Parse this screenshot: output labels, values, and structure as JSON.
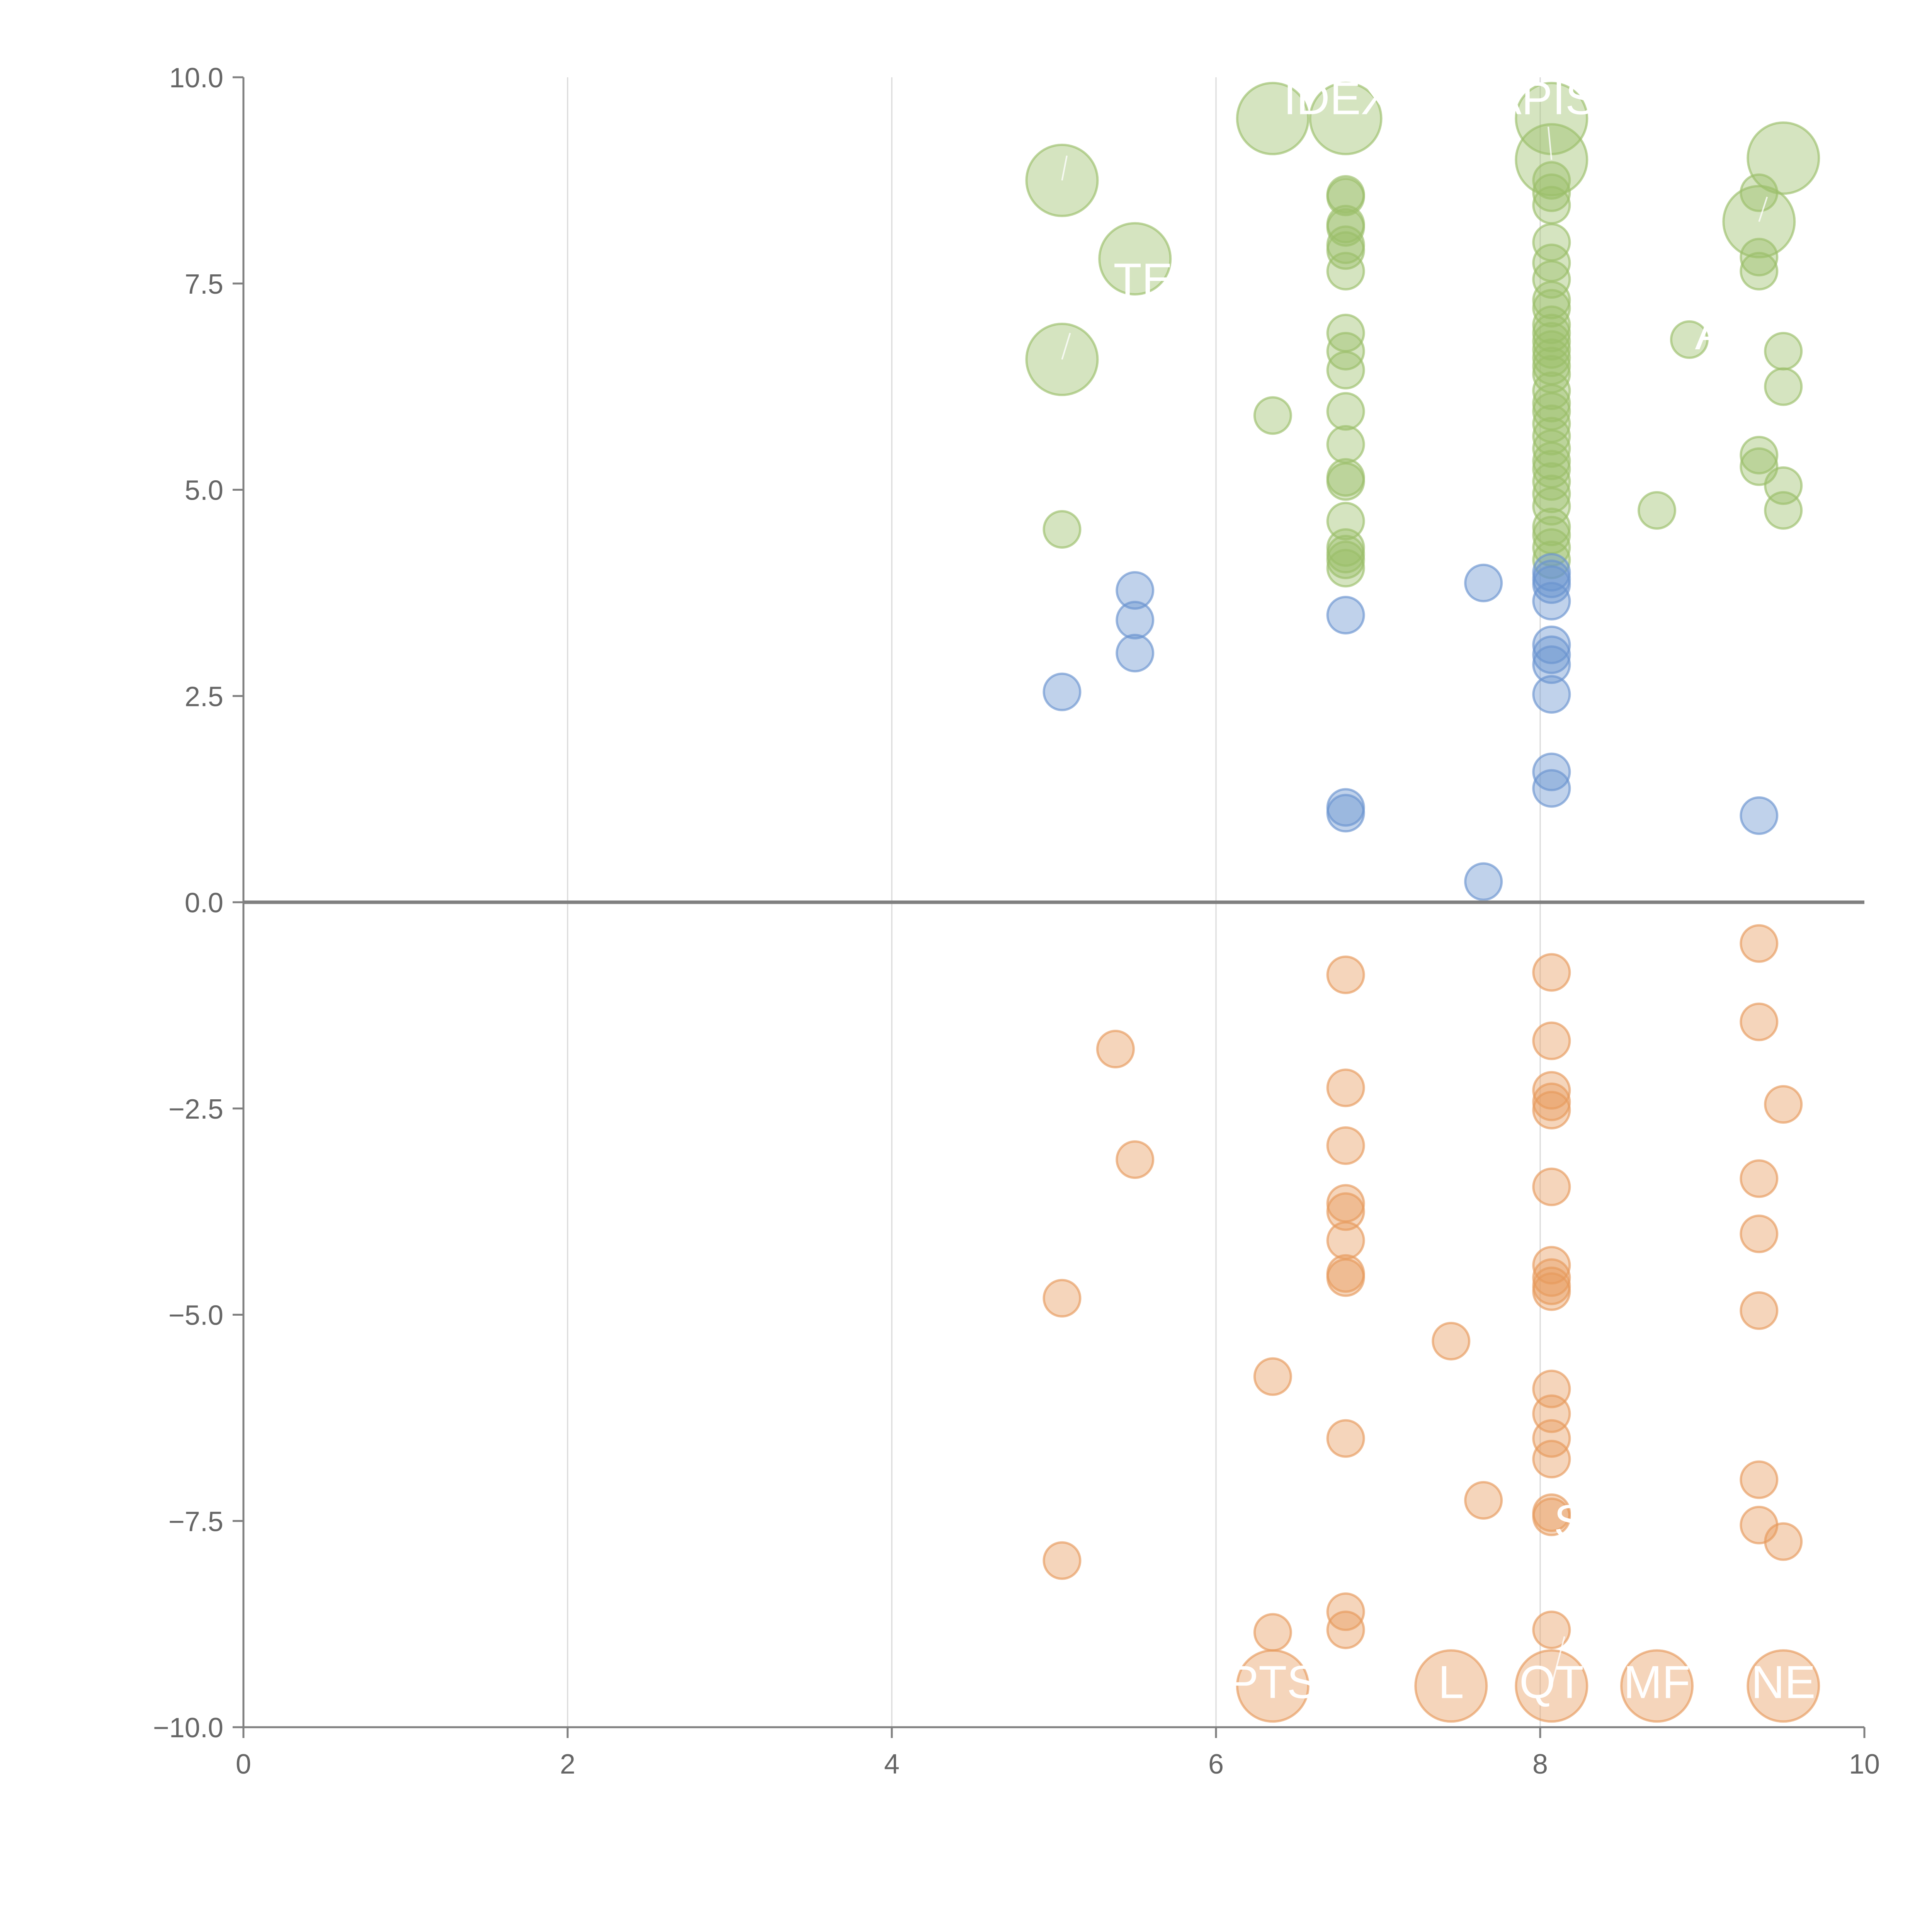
{
  "colors": {
    "green": "#9bbf6a",
    "blue": "#6a93cf",
    "orange": "#e79a5c",
    "axis": "#808080",
    "grid": "#d9d9d9",
    "tick_text": "#666666"
  },
  "chart_data": {
    "type": "scatter",
    "title": "",
    "xlabel": "",
    "ylabel": "",
    "xlim": [
      0,
      10
    ],
    "ylim": [
      -10,
      10
    ],
    "x_ticks": [
      "0",
      "2",
      "4",
      "6",
      "8",
      "10"
    ],
    "y_ticks": [
      "10.0",
      "7.5",
      "5.0",
      "2.5",
      "0.0",
      "−2.5",
      "−5.0",
      "−7.5",
      "−10.0"
    ],
    "x_grid": [
      2,
      4,
      6,
      8
    ],
    "series": [
      {
        "name": "green",
        "color": "#9bbf6a",
        "points": [
          [
            5.05,
            8.75,
            2
          ],
          [
            5.5,
            7.8,
            2
          ],
          [
            5.05,
            6.58,
            2
          ],
          [
            6.35,
            9.5,
            2
          ],
          [
            6.8,
            9.5,
            2
          ],
          [
            8.07,
            9.5,
            2
          ],
          [
            8.07,
            9.0,
            2
          ],
          [
            9.5,
            9.02,
            2
          ],
          [
            9.35,
            8.25,
            2
          ],
          [
            6.35,
            5.9,
            1
          ],
          [
            5.05,
            4.52,
            1
          ],
          [
            6.8,
            8.58,
            1
          ],
          [
            6.8,
            8.55,
            1
          ],
          [
            6.8,
            8.22,
            1
          ],
          [
            6.8,
            8.18,
            1
          ],
          [
            6.8,
            7.97,
            1
          ],
          [
            6.8,
            7.9,
            1
          ],
          [
            6.8,
            7.65,
            1
          ],
          [
            6.8,
            6.9,
            1
          ],
          [
            6.8,
            6.68,
            1
          ],
          [
            6.8,
            6.45,
            1
          ],
          [
            6.8,
            5.95,
            1
          ],
          [
            6.8,
            5.55,
            1
          ],
          [
            6.8,
            5.15,
            1
          ],
          [
            6.8,
            5.1,
            1
          ],
          [
            6.8,
            4.62,
            1
          ],
          [
            6.8,
            4.3,
            1
          ],
          [
            6.8,
            4.22,
            1
          ],
          [
            6.8,
            4.15,
            1
          ],
          [
            6.8,
            4.05,
            1
          ],
          [
            8.07,
            8.75,
            1
          ],
          [
            8.07,
            8.6,
            1
          ],
          [
            8.07,
            8.45,
            1
          ],
          [
            8.07,
            8.0,
            1
          ],
          [
            8.07,
            7.75,
            1
          ],
          [
            8.07,
            7.55,
            1
          ],
          [
            8.07,
            7.3,
            1
          ],
          [
            8.07,
            7.2,
            1
          ],
          [
            8.07,
            7.0,
            1
          ],
          [
            8.07,
            6.9,
            1
          ],
          [
            8.07,
            6.8,
            1
          ],
          [
            8.07,
            6.7,
            1
          ],
          [
            8.07,
            6.6,
            1
          ],
          [
            8.07,
            6.5,
            1
          ],
          [
            8.07,
            6.4,
            1
          ],
          [
            8.07,
            6.2,
            1
          ],
          [
            8.07,
            6.05,
            1
          ],
          [
            8.07,
            5.95,
            1
          ],
          [
            8.07,
            5.8,
            1
          ],
          [
            8.07,
            5.65,
            1
          ],
          [
            8.07,
            5.5,
            1
          ],
          [
            8.07,
            5.35,
            1
          ],
          [
            8.07,
            5.25,
            1
          ],
          [
            8.07,
            5.1,
            1
          ],
          [
            8.07,
            4.95,
            1
          ],
          [
            8.07,
            4.8,
            1
          ],
          [
            8.07,
            4.55,
            1
          ],
          [
            8.07,
            4.45,
            1
          ],
          [
            8.07,
            4.3,
            1
          ],
          [
            8.07,
            4.15,
            1
          ],
          [
            8.72,
            4.75,
            1
          ],
          [
            8.92,
            6.82,
            1
          ],
          [
            9.35,
            8.6,
            1
          ],
          [
            9.35,
            7.82,
            1
          ],
          [
            9.35,
            7.65,
            1
          ],
          [
            9.35,
            5.42,
            1
          ],
          [
            9.35,
            5.28,
            1
          ],
          [
            9.5,
            6.68,
            1
          ],
          [
            9.5,
            6.25,
            1
          ],
          [
            9.5,
            5.05,
            1
          ],
          [
            9.5,
            4.75,
            1
          ]
        ]
      },
      {
        "name": "blue",
        "color": "#6a93cf",
        "points": [
          [
            5.05,
            2.55,
            1
          ],
          [
            5.5,
            3.78,
            1
          ],
          [
            5.5,
            3.42,
            1
          ],
          [
            5.5,
            3.02,
            1
          ],
          [
            6.8,
            3.48,
            1
          ],
          [
            6.8,
            1.15,
            1
          ],
          [
            6.8,
            1.08,
            1
          ],
          [
            7.65,
            3.87,
            1
          ],
          [
            7.65,
            0.25,
            1
          ],
          [
            8.07,
            4.0,
            1
          ],
          [
            8.07,
            3.92,
            1
          ],
          [
            8.07,
            3.85,
            1
          ],
          [
            8.07,
            3.65,
            1
          ],
          [
            8.07,
            3.12,
            1
          ],
          [
            8.07,
            3.0,
            1
          ],
          [
            8.07,
            2.88,
            1
          ],
          [
            8.07,
            2.52,
            1
          ],
          [
            8.07,
            1.58,
            1
          ],
          [
            8.07,
            1.38,
            1
          ],
          [
            9.35,
            1.05,
            1
          ]
        ]
      },
      {
        "name": "orange",
        "color": "#e79a5c",
        "points": [
          [
            5.38,
            -1.78,
            1
          ],
          [
            5.5,
            -3.12,
            1
          ],
          [
            5.05,
            -4.8,
            1
          ],
          [
            5.05,
            -7.98,
            1
          ],
          [
            6.35,
            -5.75,
            1
          ],
          [
            6.35,
            -8.85,
            1
          ],
          [
            6.8,
            -0.88,
            1
          ],
          [
            6.8,
            -2.25,
            1
          ],
          [
            6.8,
            -2.95,
            1
          ],
          [
            6.8,
            -3.65,
            1
          ],
          [
            6.8,
            -3.75,
            1
          ],
          [
            6.8,
            -4.1,
            1
          ],
          [
            6.8,
            -4.5,
            1
          ],
          [
            6.8,
            -4.55,
            1
          ],
          [
            6.8,
            -6.5,
            1
          ],
          [
            6.8,
            -8.6,
            1
          ],
          [
            6.8,
            -8.82,
            1
          ],
          [
            7.45,
            -5.32,
            1
          ],
          [
            7.65,
            -7.25,
            1
          ],
          [
            8.07,
            -0.85,
            1
          ],
          [
            8.07,
            -1.68,
            1
          ],
          [
            8.07,
            -2.28,
            1
          ],
          [
            8.07,
            -2.42,
            1
          ],
          [
            8.07,
            -2.52,
            1
          ],
          [
            8.07,
            -3.45,
            1
          ],
          [
            8.07,
            -4.4,
            1
          ],
          [
            8.07,
            -4.55,
            1
          ],
          [
            8.07,
            -4.65,
            1
          ],
          [
            8.07,
            -4.72,
            1
          ],
          [
            8.07,
            -5.9,
            1
          ],
          [
            8.07,
            -6.2,
            1
          ],
          [
            8.07,
            -6.5,
            1
          ],
          [
            8.07,
            -6.75,
            1
          ],
          [
            8.07,
            -7.4,
            1
          ],
          [
            8.07,
            -7.45,
            1
          ],
          [
            8.07,
            -8.82,
            1
          ],
          [
            9.35,
            -0.5,
            1
          ],
          [
            9.35,
            -1.45,
            1
          ],
          [
            9.35,
            -3.35,
            1
          ],
          [
            9.35,
            -4.02,
            1
          ],
          [
            9.35,
            -4.95,
            1
          ],
          [
            9.35,
            -7.0,
            1
          ],
          [
            9.35,
            -7.55,
            1
          ],
          [
            9.5,
            -2.45,
            1
          ],
          [
            9.5,
            -7.75,
            1
          ],
          [
            6.35,
            -9.5,
            2
          ],
          [
            7.45,
            -9.5,
            2
          ],
          [
            8.07,
            -9.5,
            2
          ],
          [
            8.72,
            -9.5,
            2
          ],
          [
            9.5,
            -9.5,
            2
          ]
        ]
      }
    ],
    "annotations": [
      {
        "text": "IDEX",
        "x": 6.75,
        "y": 9.75
      },
      {
        "text": "APIS",
        "x": 8.02,
        "y": 9.75
      },
      {
        "text": "TE",
        "x": 5.55,
        "y": 7.55
      },
      {
        "text": "A",
        "x": 9.05,
        "y": 6.9
      },
      {
        "text": "S",
        "x": 8.18,
        "y": -7.5
      },
      {
        "text": "PTS",
        "x": 6.35,
        "y": -9.45
      },
      {
        "text": "L",
        "x": 7.45,
        "y": -9.45
      },
      {
        "text": "QT",
        "x": 8.07,
        "y": -9.45
      },
      {
        "text": "MF",
        "x": 8.72,
        "y": -9.45
      },
      {
        "text": "NE",
        "x": 9.5,
        "y": -9.45
      }
    ]
  }
}
